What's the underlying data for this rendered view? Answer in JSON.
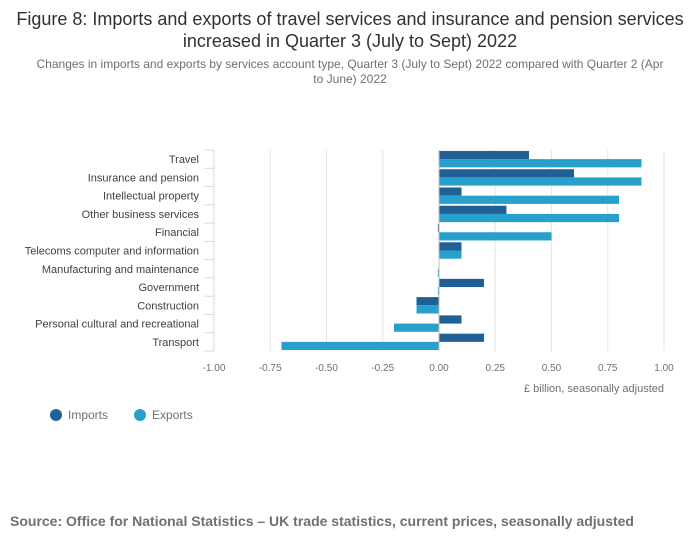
{
  "title": "Figure 8: Imports and exports of travel services and insurance and pension services increased in Quarter 3 (July to Sept) 2022",
  "subtitle": "Changes in imports and exports by services account type, Quarter 3 (July to Sept) 2022 compared with Quarter 2 (Apr to June) 2022",
  "source": "Source: Office for National Statistics – UK trade statistics, current prices, seasonally adjusted",
  "colors": {
    "imports": "#206095",
    "exports": "#27a0cc",
    "grid": "#e6e6e6",
    "axis": "#d9d9d9"
  },
  "chart_data": {
    "type": "bar",
    "orientation": "horizontal",
    "categories": [
      "Travel",
      "Insurance and pension",
      "Intellectual property",
      "Other business services",
      "Financial",
      "Telecoms computer and information",
      "Manufacturing and maintenance",
      "Government",
      "Construction",
      "Personal cultural and recreational",
      "Transport"
    ],
    "series": [
      {
        "name": "Imports",
        "values": [
          0.4,
          0.6,
          0.1,
          0.3,
          -0.005,
          0.1,
          0.0,
          0.2,
          -0.1,
          0.1,
          0.2
        ]
      },
      {
        "name": "Exports",
        "values": [
          0.9,
          0.9,
          0.8,
          0.8,
          0.5,
          0.1,
          -0.005,
          -0.005,
          -0.1,
          -0.2,
          -0.7
        ]
      }
    ],
    "xlim": [
      -1.0,
      1.0
    ],
    "xticks": [
      -1.0,
      -0.75,
      -0.5,
      -0.25,
      0.0,
      0.25,
      0.5,
      0.75,
      1.0
    ],
    "xtick_labels": [
      "-1.00",
      "-0.75",
      "-0.50",
      "-0.25",
      "0.00",
      "0.25",
      "0.50",
      "0.75",
      "1.00"
    ],
    "xlabel": "£ billion, seasonally adjusted",
    "ylabel": "",
    "legend": "bottom-left"
  }
}
